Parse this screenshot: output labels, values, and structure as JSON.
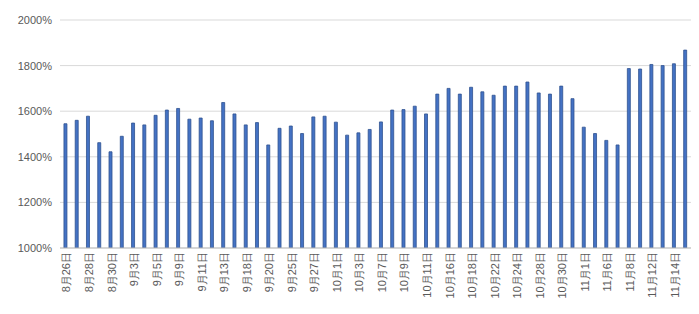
{
  "chart_data": {
    "type": "bar",
    "categories": [
      "8月26日",
      null,
      "8月28日",
      null,
      "8月30日",
      null,
      "9月3日",
      null,
      "9月5日",
      null,
      "9月9日",
      null,
      "9月11日",
      null,
      "9月13日",
      null,
      "9月18日",
      null,
      "9月20日",
      null,
      "9月25日",
      null,
      "9月27日",
      null,
      "10月1日",
      null,
      "10月3日",
      null,
      "10月7日",
      null,
      "10月9日",
      null,
      "10月11日",
      null,
      "10月16日",
      null,
      "10月18日",
      null,
      "10月22日",
      null,
      "10月24日",
      null,
      "10月28日",
      null,
      "10月30日",
      null,
      "11月1日",
      null,
      "11月6日",
      null,
      "11月8日",
      null,
      "11月12日",
      null,
      "11月14日",
      null
    ],
    "values": [
      1545,
      1560,
      1578,
      1462,
      1422,
      1490,
      1548,
      1540,
      1582,
      1605,
      1612,
      1565,
      1570,
      1558,
      1638,
      1588,
      1540,
      1550,
      1452,
      1525,
      1535,
      1502,
      1575,
      1578,
      1552,
      1495,
      1505,
      1520,
      1553,
      1605,
      1607,
      1622,
      1588,
      1675,
      1700,
      1675,
      1705,
      1685,
      1670,
      1710,
      1710,
      1728,
      1680,
      1675,
      1710,
      1655,
      1530,
      1502,
      1472,
      1452,
      1787,
      1785,
      1805,
      1800,
      1808,
      1868
    ],
    "color": "#4472c4",
    "ylim": [
      1000,
      2000
    ],
    "yticks": [
      {
        "value": 1000,
        "label": "1000%"
      },
      {
        "value": 1200,
        "label": "1200%"
      },
      {
        "value": 1400,
        "label": "1400%"
      },
      {
        "value": 1600,
        "label": "1600%"
      },
      {
        "value": 1800,
        "label": "1800%"
      },
      {
        "value": 2000,
        "label": "2000%"
      }
    ],
    "grid": true
  }
}
